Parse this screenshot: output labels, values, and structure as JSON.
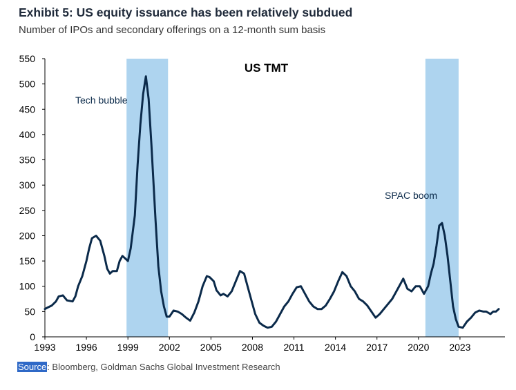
{
  "title": "Exhibit 5: US equity issuance has been relatively subdued",
  "subtitle": "Number of IPOs and secondary offerings on a 12-month sum basis",
  "source": {
    "label": "Source",
    "text": ": Bloomberg, Goldman Sachs Global Investment Research"
  },
  "colors": {
    "line": "#0b2a4a",
    "shade": "#aed4ef",
    "axis": "#000000"
  },
  "chart_data": {
    "type": "line",
    "title": "US TMT",
    "xlabel": "",
    "ylabel": "",
    "xlim": [
      1993.0,
      2026.25
    ],
    "ylim": [
      0,
      550
    ],
    "y_ticks": [
      0,
      50,
      100,
      150,
      200,
      250,
      300,
      350,
      400,
      450,
      500,
      550
    ],
    "x_ticks": [
      1993,
      1996,
      1999,
      2002,
      2005,
      2008,
      2011,
      2014,
      2017,
      2020,
      2023
    ],
    "grid": false,
    "legend": "none",
    "shaded_periods": [
      {
        "start": 1998.9,
        "end": 2001.9,
        "label": "Tech bubble"
      },
      {
        "start": 2020.5,
        "end": 2022.9,
        "label": "SPAC boom"
      }
    ],
    "series": [
      {
        "name": "US TMT",
        "x": [
          1993.0,
          1993.2,
          1993.5,
          1993.8,
          1994.0,
          1994.3,
          1994.6,
          1995.0,
          1995.2,
          1995.4,
          1995.7,
          1996.0,
          1996.2,
          1996.4,
          1996.7,
          1997.0,
          1997.3,
          1997.5,
          1997.7,
          1997.9,
          1998.2,
          1998.4,
          1998.6,
          1998.8,
          1999.0,
          1999.2,
          1999.5,
          1999.7,
          1999.9,
          2000.1,
          2000.3,
          2000.5,
          2000.7,
          2001.0,
          2001.2,
          2001.4,
          2001.6,
          2001.8,
          2002.0,
          2002.3,
          2002.6,
          2002.9,
          2003.2,
          2003.5,
          2003.8,
          2004.1,
          2004.4,
          2004.7,
          2004.9,
          2005.2,
          2005.4,
          2005.7,
          2005.9,
          2006.2,
          2006.5,
          2006.8,
          2007.1,
          2007.4,
          2007.6,
          2007.9,
          2008.2,
          2008.5,
          2008.8,
          2009.1,
          2009.4,
          2009.7,
          2010.0,
          2010.3,
          2010.6,
          2010.9,
          2011.2,
          2011.5,
          2011.8,
          2012.1,
          2012.4,
          2012.7,
          2013.0,
          2013.3,
          2013.6,
          2013.9,
          2014.2,
          2014.5,
          2014.8,
          2015.1,
          2015.4,
          2015.7,
          2016.0,
          2016.3,
          2016.6,
          2016.9,
          2017.2,
          2017.5,
          2017.8,
          2018.1,
          2018.4,
          2018.7,
          2018.9,
          2019.2,
          2019.5,
          2019.8,
          2020.1,
          2020.4,
          2020.7,
          2020.9,
          2021.1,
          2021.3,
          2021.5,
          2021.7,
          2021.9,
          2022.1,
          2022.3,
          2022.5,
          2022.7,
          2022.9,
          2023.2,
          2023.5,
          2023.8,
          2024.1,
          2024.4,
          2024.7,
          2024.9,
          2025.2,
          2025.4,
          2025.6,
          2025.8
        ],
        "values": [
          55,
          58,
          62,
          70,
          80,
          82,
          72,
          70,
          80,
          100,
          120,
          150,
          175,
          195,
          200,
          190,
          160,
          135,
          125,
          130,
          130,
          150,
          160,
          155,
          150,
          175,
          240,
          340,
          420,
          480,
          515,
          470,
          380,
          230,
          140,
          90,
          60,
          40,
          40,
          52,
          50,
          45,
          38,
          32,
          48,
          70,
          100,
          120,
          118,
          110,
          92,
          82,
          85,
          80,
          90,
          110,
          130,
          125,
          105,
          75,
          45,
          28,
          22,
          18,
          20,
          30,
          45,
          60,
          70,
          85,
          98,
          100,
          85,
          70,
          60,
          55,
          55,
          62,
          75,
          90,
          110,
          128,
          120,
          100,
          90,
          75,
          70,
          62,
          50,
          38,
          45,
          55,
          65,
          75,
          90,
          105,
          115,
          95,
          90,
          100,
          100,
          85,
          100,
          125,
          145,
          180,
          220,
          225,
          200,
          160,
          110,
          60,
          35,
          20,
          18,
          30,
          38,
          48,
          52,
          50,
          50,
          45,
          50,
          50,
          55
        ]
      }
    ],
    "annotations": [
      "Tech bubble",
      "SPAC boom"
    ]
  }
}
